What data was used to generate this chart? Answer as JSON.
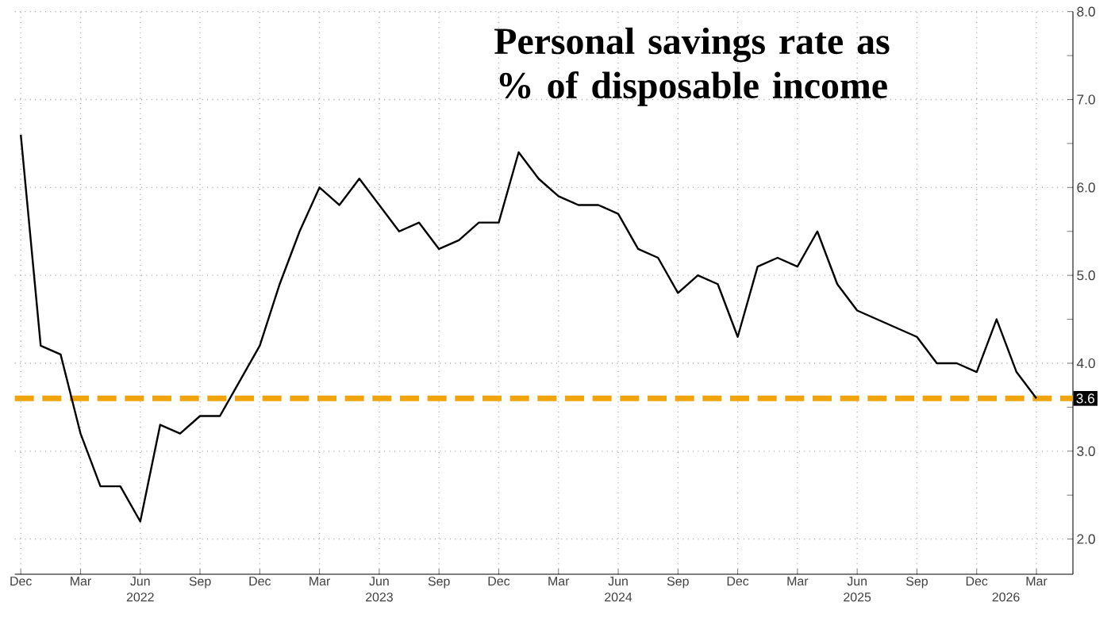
{
  "chart_data": {
    "type": "line",
    "title": "Personal savings rate as % of disposable income",
    "x": [
      "2021-12",
      "2022-01",
      "2022-02",
      "2022-03",
      "2022-04",
      "2022-05",
      "2022-06",
      "2022-07",
      "2022-08",
      "2022-09",
      "2022-10",
      "2022-11",
      "2022-12",
      "2023-01",
      "2023-02",
      "2023-03",
      "2023-04",
      "2023-05",
      "2023-06",
      "2023-07",
      "2023-08",
      "2023-09",
      "2023-10",
      "2023-11",
      "2023-12",
      "2024-01",
      "2024-02",
      "2024-03",
      "2024-04",
      "2024-05",
      "2024-06",
      "2024-07",
      "2024-08",
      "2024-09",
      "2024-10",
      "2024-11",
      "2024-12",
      "2025-01",
      "2025-02",
      "2025-03",
      "2025-04",
      "2025-05",
      "2025-06",
      "2025-07",
      "2025-08",
      "2025-09",
      "2025-10",
      "2025-11",
      "2025-12",
      "2026-01",
      "2026-02",
      "2026-03"
    ],
    "series": [
      {
        "color": "#000000",
        "values": [
          6.6,
          4.2,
          4.1,
          3.2,
          2.6,
          2.6,
          2.2,
          3.3,
          3.2,
          3.4,
          3.4,
          3.8,
          4.2,
          4.9,
          5.5,
          6.0,
          5.8,
          6.1,
          5.8,
          5.5,
          5.6,
          5.3,
          5.4,
          5.6,
          5.6,
          6.4,
          6.1,
          5.9,
          5.8,
          5.8,
          5.7,
          5.3,
          5.2,
          4.8,
          5.0,
          4.9,
          4.3,
          5.1,
          5.2,
          5.1,
          5.5,
          4.9,
          4.6,
          4.5,
          4.4,
          4.3,
          4.0,
          4.0,
          3.9,
          4.5,
          3.9,
          3.6
        ]
      }
    ],
    "xlim": [
      "2021-11-22",
      "2026-04-26"
    ],
    "xticks": [
      {
        "value": "2021-12",
        "label": "Dec"
      },
      {
        "value": "2022-03",
        "label": "Mar"
      },
      {
        "value": "2022-06",
        "label": "Jun"
      },
      {
        "value": "2022-09",
        "label": "Sep"
      },
      {
        "value": "2022-12",
        "label": "Dec"
      },
      {
        "value": "2023-03",
        "label": "Mar"
      },
      {
        "value": "2023-06",
        "label": "Jun"
      },
      {
        "value": "2023-09",
        "label": "Sep"
      },
      {
        "value": "2023-12",
        "label": "Dec"
      },
      {
        "value": "2024-03",
        "label": "Mar"
      },
      {
        "value": "2024-06",
        "label": "Jun"
      },
      {
        "value": "2024-09",
        "label": "Sep"
      },
      {
        "value": "2024-12",
        "label": "Dec"
      },
      {
        "value": "2025-03",
        "label": "Mar"
      },
      {
        "value": "2025-06",
        "label": "Jun"
      },
      {
        "value": "2025-09",
        "label": "Sep"
      },
      {
        "value": "2025-12",
        "label": "Dec"
      },
      {
        "value": "2026-03",
        "label": "Mar"
      }
    ],
    "x2lim": [
      "2021-11-22",
      "2026-04-26"
    ],
    "x2ticks": [
      {
        "value": "2022-06",
        "label": "2022"
      },
      {
        "value": "2023-06",
        "label": "2023"
      },
      {
        "value": "2024-06",
        "label": "2024"
      },
      {
        "value": "2025-06",
        "label": "2025"
      },
      {
        "value": "2026-01-15",
        "label": "2026"
      }
    ],
    "ylim": [
      1.6,
      8.0
    ],
    "yticks": [
      {
        "value": 2,
        "label": "2.0"
      },
      {
        "value": 3,
        "label": "3.0"
      },
      {
        "value": 4,
        "label": "4.0"
      },
      {
        "value": 5,
        "label": "5.0"
      },
      {
        "value": 6,
        "label": "6.0"
      },
      {
        "value": 7,
        "label": "7.0"
      },
      {
        "value": 8,
        "label": "8.0"
      }
    ],
    "grid": true,
    "ref_lines": [
      {
        "axis": "y",
        "value": 3.6,
        "label": "3.6",
        "color": "#f0a30a",
        "line_style": "dashed"
      }
    ]
  }
}
